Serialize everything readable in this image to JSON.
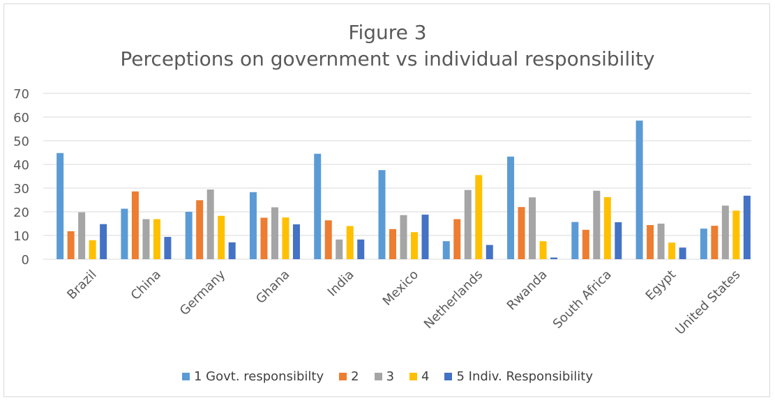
{
  "chart_data": {
    "type": "bar",
    "title": "Figure 3",
    "subtitle": "Perceptions on government vs individual responsibility",
    "categories": [
      "Brazil",
      "China",
      "Germany",
      "Ghana",
      "India",
      "Mexico",
      "Netherlands",
      "Rwanda",
      "South Africa",
      "Egypt",
      "United States"
    ],
    "ylim": [
      0,
      70
    ],
    "yticks": [
      0,
      10,
      20,
      30,
      40,
      50,
      60,
      70
    ],
    "grid": true,
    "legend_position": "bottom",
    "series": [
      {
        "name": "1 Govt. responsibilty",
        "color": "#5b9bd5",
        "values": [
          44.8,
          21.3,
          20.0,
          28.3,
          44.5,
          37.6,
          7.6,
          43.3,
          15.7,
          58.5,
          12.9
        ]
      },
      {
        "name": "2",
        "color": "#ed7d31",
        "values": [
          11.8,
          28.6,
          24.9,
          17.5,
          16.4,
          12.7,
          16.9,
          22.0,
          12.4,
          14.4,
          14.1
        ]
      },
      {
        "name": "3",
        "color": "#a5a5a5",
        "values": [
          19.8,
          16.9,
          29.4,
          21.9,
          8.3,
          18.6,
          29.2,
          26.1,
          28.9,
          15.0,
          22.6
        ]
      },
      {
        "name": "4",
        "color": "#ffc000",
        "values": [
          8.0,
          16.9,
          18.3,
          17.6,
          14.0,
          11.4,
          35.5,
          7.6,
          26.2,
          7.0,
          20.5
        ]
      },
      {
        "name": "5 Indiv. Responsibility",
        "color": "#4472c4",
        "values": [
          14.8,
          9.4,
          7.1,
          14.7,
          8.3,
          18.8,
          6.0,
          0.7,
          15.6,
          4.9,
          26.8
        ]
      }
    ]
  }
}
